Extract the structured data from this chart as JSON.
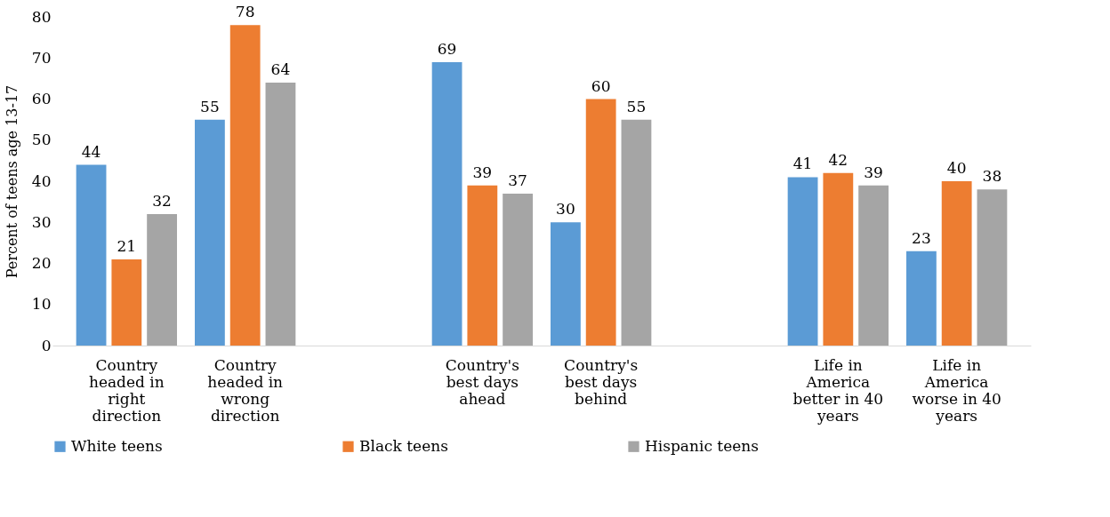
{
  "chart_data": {
    "type": "bar",
    "ylabel": "Percent of teens age 13-17",
    "categories": [
      "Country headed in right direction",
      "Country headed in wrong direction",
      null,
      "Country's best days ahead",
      "Country's best days behind",
      null,
      "Life in America better in 40 years",
      "Life in America worse in 40 years"
    ],
    "series": [
      {
        "name": "White teens",
        "color": "#5b9bd5",
        "values": [
          44,
          55,
          null,
          69,
          30,
          null,
          41,
          23
        ]
      },
      {
        "name": "Black teens",
        "color": "#ed7d31",
        "values": [
          21,
          78,
          null,
          39,
          60,
          null,
          42,
          40
        ]
      },
      {
        "name": "Hispanic teens",
        "color": "#a5a5a5",
        "values": [
          32,
          64,
          null,
          37,
          55,
          null,
          39,
          38
        ]
      }
    ],
    "ylim": [
      0,
      80
    ],
    "yticks": [
      0,
      10,
      20,
      30,
      40,
      50,
      60,
      70,
      80
    ],
    "grid": false,
    "legend": "bottom",
    "data_labels": true
  }
}
